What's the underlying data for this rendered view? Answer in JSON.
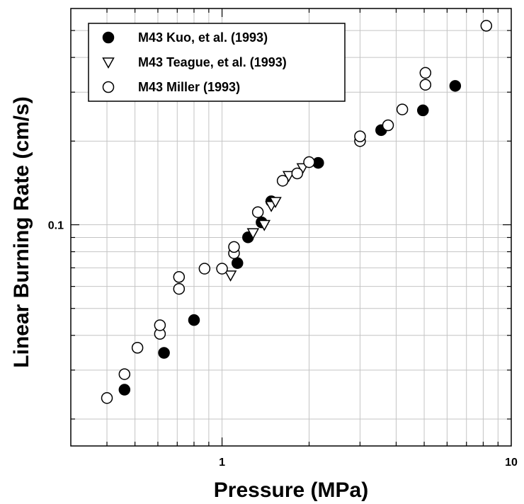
{
  "chart_data": {
    "type": "scatter",
    "x_scale": "log",
    "y_scale": "log",
    "xlabel": "Pressure (MPa)",
    "ylabel": "Linear Burning Rate (cm/s)",
    "xlim": [
      0.3,
      10
    ],
    "ylim": [
      0.016,
      0.6
    ],
    "grid": true,
    "legend_position": "top-left",
    "x_tick_labels": [
      {
        "value": 1,
        "label": "1"
      },
      {
        "value": 10,
        "label": "10"
      }
    ],
    "y_tick_labels": [
      {
        "value": 0.1,
        "label": "0.1"
      }
    ],
    "series": [
      {
        "name": "M43 Kuo, et al. (1993)",
        "marker": "filled-circle",
        "color": "#000000",
        "points": [
          {
            "x": 0.46,
            "y": 0.0255
          },
          {
            "x": 0.63,
            "y": 0.0346
          },
          {
            "x": 0.8,
            "y": 0.0454
          },
          {
            "x": 1.13,
            "y": 0.0728
          },
          {
            "x": 1.23,
            "y": 0.0901
          },
          {
            "x": 1.37,
            "y": 0.102
          },
          {
            "x": 1.48,
            "y": 0.1215
          },
          {
            "x": 2.15,
            "y": 0.167
          },
          {
            "x": 3.55,
            "y": 0.219
          },
          {
            "x": 4.95,
            "y": 0.258
          },
          {
            "x": 6.4,
            "y": 0.316
          }
        ]
      },
      {
        "name": "M43 Teague, et al. (1993)",
        "marker": "open-triangle-down",
        "color": "#000000",
        "points": [
          {
            "x": 1.07,
            "y": 0.0658
          },
          {
            "x": 1.28,
            "y": 0.0934
          },
          {
            "x": 1.4,
            "y": 0.1
          },
          {
            "x": 1.48,
            "y": 0.117
          },
          {
            "x": 1.53,
            "y": 0.121
          },
          {
            "x": 1.7,
            "y": 0.15
          },
          {
            "x": 1.9,
            "y": 0.16
          }
        ]
      },
      {
        "name": "M43 Miller (1993)",
        "marker": "open-circle",
        "color": "#000000",
        "points": [
          {
            "x": 0.4,
            "y": 0.0238
          },
          {
            "x": 0.46,
            "y": 0.029
          },
          {
            "x": 0.51,
            "y": 0.0361
          },
          {
            "x": 0.61,
            "y": 0.0405
          },
          {
            "x": 0.61,
            "y": 0.0435
          },
          {
            "x": 0.71,
            "y": 0.0588
          },
          {
            "x": 0.71,
            "y": 0.0649
          },
          {
            "x": 0.87,
            "y": 0.0695
          },
          {
            "x": 1.0,
            "y": 0.0695
          },
          {
            "x": 1.1,
            "y": 0.079
          },
          {
            "x": 1.1,
            "y": 0.0832
          },
          {
            "x": 1.33,
            "y": 0.111
          },
          {
            "x": 1.62,
            "y": 0.144
          },
          {
            "x": 1.82,
            "y": 0.153
          },
          {
            "x": 2.0,
            "y": 0.168
          },
          {
            "x": 3.0,
            "y": 0.2
          },
          {
            "x": 3.0,
            "y": 0.208
          },
          {
            "x": 3.75,
            "y": 0.228
          },
          {
            "x": 4.2,
            "y": 0.26
          },
          {
            "x": 5.05,
            "y": 0.319
          },
          {
            "x": 5.05,
            "y": 0.352
          },
          {
            "x": 8.2,
            "y": 0.52
          }
        ]
      }
    ]
  }
}
